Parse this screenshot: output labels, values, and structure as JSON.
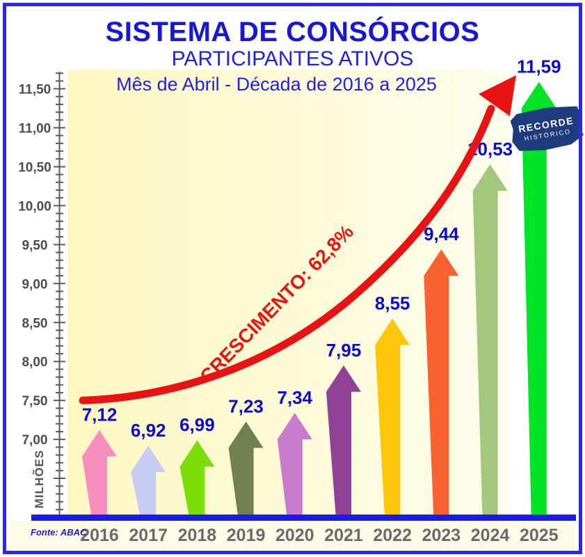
{
  "chart_data": {
    "type": "bar",
    "title": "SISTEMA DE CONSÓRCIOS",
    "subtitle": "PARTICIPANTES ATIVOS",
    "period_label": "Mês de Abril - Década de 2016 a 2025",
    "unit_label": "MILHÕES",
    "source": "Fonte: ABAC",
    "growth_annotation": "CRESCIMENTO: 62,8%",
    "record_badge": {
      "line1": "RECORDE",
      "line2": "HISTÓRICO"
    },
    "categories": [
      "2016",
      "2017",
      "2018",
      "2019",
      "2020",
      "2021",
      "2022",
      "2023",
      "2024",
      "2025"
    ],
    "values": [
      7.12,
      6.92,
      6.99,
      7.23,
      7.34,
      7.95,
      8.55,
      9.44,
      10.53,
      11.59
    ],
    "value_labels": [
      "7,12",
      "6,92",
      "6,99",
      "7,23",
      "7,34",
      "7,95",
      "8,55",
      "9,44",
      "10,53",
      "11,59"
    ],
    "bar_colors": [
      "#F78FBE",
      "#C7CCF4",
      "#7CDE08",
      "#6F8150",
      "#C87CCE",
      "#8E4397",
      "#FFC60A",
      "#F96231",
      "#A4C77E",
      "#00E428"
    ],
    "xlabel": "",
    "ylabel": "MILHÕES",
    "ylim": [
      6.0,
      11.7
    ],
    "y_axis": {
      "labeled_min": 7.0,
      "labeled_max": 11.5,
      "major_step": 0.5,
      "minor_step": 0.1,
      "tick_labels": [
        "7,00",
        "7,50",
        "8,00",
        "8,50",
        "9,00",
        "9,50",
        "10,00",
        "10,50",
        "11,00",
        "11,50"
      ],
      "decimal_separator": ","
    },
    "grid": false,
    "legend": "none",
    "trend_arrow": {
      "start_value": 7.5,
      "end_value": 11.7,
      "color": "#E81414"
    }
  },
  "colors": {
    "title_blue": "#1717D4",
    "subtitle_blue": "#2121DC",
    "value_label_blue": "#0A0ACE",
    "baseline_blue": "#1B1BF0",
    "border_blue": "#2A2ADF",
    "growth_red": "#E81414",
    "badge_navy": "#1E3C7C",
    "axis_gray": "#5A5A5A",
    "tick_label_gray": "#4C4C4C",
    "year_label_gray": "#6A6A6A",
    "plot_bg_left": "#FFF8C2",
    "plot_bg_right": "#FCFDEC",
    "bottom_strip_cream": "#FBFBE8"
  }
}
